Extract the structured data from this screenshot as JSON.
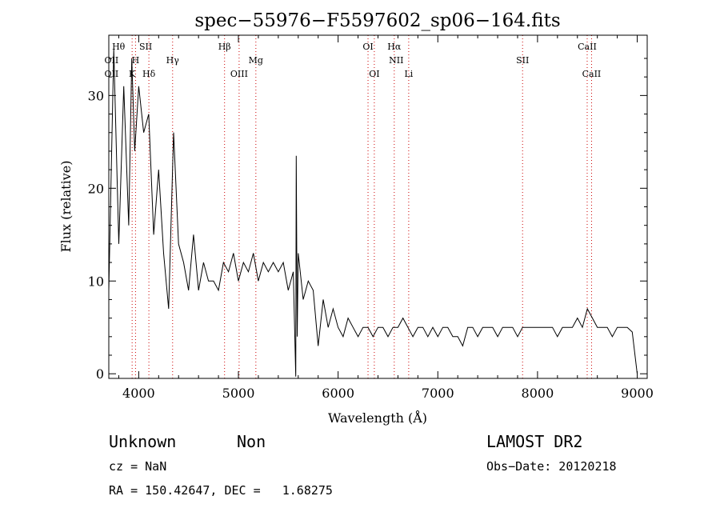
{
  "chart_data": {
    "type": "line",
    "title": "spec−55976−F5597602_sp06−164.fits",
    "xlabel": "Wavelength (Å)",
    "ylabel": "Flux (relative)",
    "xlim": [
      3700,
      9100
    ],
    "ylim": [
      -0.5,
      36.5
    ],
    "xticks": [
      4000,
      5000,
      6000,
      7000,
      8000,
      9000
    ],
    "yticks": [
      0,
      10,
      20,
      30
    ],
    "grid": false,
    "series_color": "#000000",
    "line_marker_color": "#cc0000",
    "spectrum": {
      "x": [
        3700,
        3750,
        3800,
        3850,
        3900,
        3930,
        3960,
        4000,
        4050,
        4100,
        4150,
        4200,
        4250,
        4300,
        4350,
        4400,
        4450,
        4500,
        4550,
        4600,
        4650,
        4700,
        4750,
        4800,
        4850,
        4900,
        4950,
        5000,
        5050,
        5100,
        5150,
        5200,
        5250,
        5300,
        5350,
        5400,
        5450,
        5500,
        5550,
        5575,
        5580,
        5590,
        5600,
        5650,
        5700,
        5750,
        5800,
        5850,
        5900,
        5950,
        6000,
        6050,
        6100,
        6150,
        6200,
        6250,
        6300,
        6350,
        6400,
        6450,
        6500,
        6550,
        6600,
        6650,
        6700,
        6750,
        6800,
        6850,
        6900,
        6950,
        7000,
        7050,
        7100,
        7150,
        7200,
        7250,
        7300,
        7350,
        7400,
        7450,
        7500,
        7550,
        7600,
        7650,
        7700,
        7750,
        7800,
        7850,
        7900,
        7950,
        8000,
        8050,
        8100,
        8150,
        8200,
        8250,
        8300,
        8350,
        8400,
        8450,
        8500,
        8550,
        8600,
        8650,
        8700,
        8750,
        8800,
        8850,
        8900,
        8950,
        9000
      ],
      "y": [
        9,
        35,
        14,
        31,
        16,
        34,
        24,
        31,
        26,
        28,
        15,
        22,
        13,
        7,
        26,
        14,
        12,
        9,
        15,
        9,
        12,
        10,
        10,
        9,
        12,
        11,
        13,
        10,
        12,
        11,
        13,
        10,
        12,
        11,
        12,
        11,
        12,
        9,
        11,
        -0.3,
        23.5,
        4,
        13,
        8,
        10,
        9,
        3,
        8,
        5,
        7,
        5,
        4,
        6,
        5,
        4,
        5,
        5,
        4,
        5,
        5,
        4,
        5,
        5,
        6,
        5,
        4,
        5,
        5,
        4,
        5,
        4,
        5,
        5,
        4,
        4,
        3,
        5,
        5,
        4,
        5,
        5,
        5,
        4,
        5,
        5,
        5,
        4,
        5,
        5,
        5,
        5,
        5,
        5,
        5,
        4,
        5,
        5,
        5,
        6,
        5,
        7,
        6,
        5,
        5,
        5,
        4,
        5,
        5,
        5,
        4.5,
        0
      ]
    },
    "lines_top": [
      {
        "label": "Hθ",
        "x": 3798
      },
      {
        "label": "SII",
        "x": 4070
      },
      {
        "label": "Hβ",
        "x": 4861
      },
      {
        "label": "OI",
        "x": 6300
      },
      {
        "label": "Hα",
        "x": 6563
      },
      {
        "label": "CaII",
        "x": 8498
      }
    ],
    "lines_mid": [
      {
        "label": "OII",
        "x": 3727
      },
      {
        "label": "H",
        "x": 3968
      },
      {
        "label": "Hγ",
        "x": 4340
      },
      {
        "label": "Mg",
        "x": 5175
      },
      {
        "label": "NII",
        "x": 6583
      },
      {
        "label": "SII",
        "x": 7850
      }
    ],
    "lines_bot": [
      {
        "label": "OII",
        "x": 3727
      },
      {
        "label": "K",
        "x": 3934
      },
      {
        "label": "Hδ",
        "x": 4102
      },
      {
        "label": "OIII",
        "x": 5007
      },
      {
        "label": "OI",
        "x": 6363
      },
      {
        "label": "Li",
        "x": 6708
      },
      {
        "label": "CaII",
        "x": 8542
      }
    ],
    "marker_x": [
      3934,
      3968,
      4102,
      4340,
      4861,
      5007,
      5175,
      6300,
      6363,
      6563,
      6708,
      7850,
      8498,
      8542
    ]
  },
  "info": {
    "class": "Unknown",
    "subclass": "Non",
    "survey": "LAMOST DR2",
    "cz": "cz = NaN",
    "obsdate": "Obs−Date: 20120218",
    "coords": "RA = 150.42647, DEC =   1.68275"
  }
}
